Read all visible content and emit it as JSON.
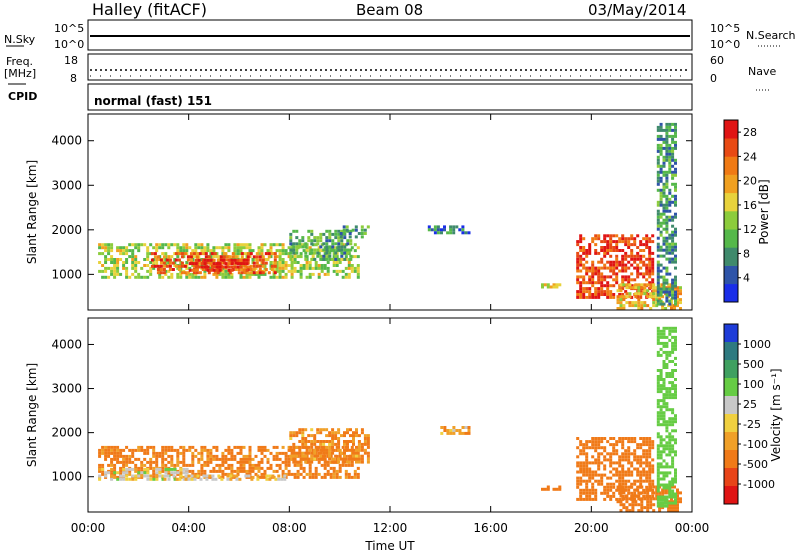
{
  "header": {
    "station": "Halley (fitACF)",
    "beam": "Beam 08",
    "date": "03/May/2014"
  },
  "panels": {
    "nsky": {
      "label": "N.Sky",
      "ticks": [
        "10^5",
        "10^0"
      ]
    },
    "nsearch": {
      "label": "N.Search",
      "ticks": [
        "10^5",
        "10^0"
      ]
    },
    "freq": {
      "label_line1": "Freq.",
      "label_line2": "[MHz]",
      "ticks": [
        "18",
        "8"
      ]
    },
    "nave": {
      "label": "Nave",
      "ticks": [
        "60",
        "0"
      ]
    },
    "cpid": {
      "label": "CPID",
      "value": "normal (fast) 151"
    }
  },
  "colors": {
    "power_scale": [
      "#1a2ee8",
      "#2e54a8",
      "#3f8a6c",
      "#55b84a",
      "#8ccc3c",
      "#e8d23c",
      "#f0a020",
      "#f07a14",
      "#e84a14",
      "#e01414"
    ],
    "velocity_scale": [
      "#1e3cd8",
      "#2e7a80",
      "#3fa060",
      "#66cc44",
      "#c8c8c8",
      "#f0d040",
      "#f0a028",
      "#f07a18",
      "#e84418",
      "#e01414"
    ]
  },
  "chart_data": [
    {
      "type": "heatmap",
      "panel": "power",
      "ylabel": "Slant Range [km]",
      "yticks": [
        "1000",
        "2000",
        "3000",
        "4000"
      ],
      "ylim": [
        200,
        4600
      ],
      "xlim": [
        0,
        24
      ],
      "colorbar": {
        "label": "Power [dB]",
        "ticks": [
          "4",
          "8",
          "12",
          "16",
          "20",
          "24",
          "28"
        ],
        "range": [
          0,
          30
        ]
      },
      "blobs": [
        {
          "t": [
            0.4,
            10.8
          ],
          "r": [
            900,
            1700
          ],
          "v": 14
        },
        {
          "t": [
            2.5,
            7.5
          ],
          "r": [
            1000,
            1500
          ],
          "v": 24
        },
        {
          "t": [
            4.0,
            6.5
          ],
          "r": [
            1050,
            1350
          ],
          "v": 28
        },
        {
          "t": [
            8.0,
            10.5
          ],
          "r": [
            1300,
            2000
          ],
          "v": 10
        },
        {
          "t": [
            10.0,
            11.2
          ],
          "r": [
            1800,
            2100
          ],
          "v": 8
        },
        {
          "t": [
            13.5,
            15.2
          ],
          "r": [
            1900,
            2100
          ],
          "v": 6
        },
        {
          "t": [
            18.0,
            18.8
          ],
          "r": [
            700,
            800
          ],
          "v": 16
        },
        {
          "t": [
            19.4,
            22.5
          ],
          "r": [
            450,
            1900
          ],
          "v": 26
        },
        {
          "t": [
            21.0,
            23.6
          ],
          "r": [
            200,
            800
          ],
          "v": 18
        },
        {
          "t": [
            22.6,
            23.4
          ],
          "r": [
            300,
            4400
          ],
          "v": 8
        }
      ]
    },
    {
      "type": "heatmap",
      "panel": "velocity",
      "xlabel": "Time UT",
      "ylabel": "Slant Range [km]",
      "xticks": [
        "00:00",
        "04:00",
        "08:00",
        "12:00",
        "16:00",
        "20:00",
        "00:00"
      ],
      "yticks": [
        "1000",
        "2000",
        "3000",
        "4000"
      ],
      "ylim": [
        200,
        4600
      ],
      "xlim": [
        0,
        24
      ],
      "colorbar": {
        "label": "Velocity [m s⁻¹]",
        "ticks": [
          "1000",
          "500",
          "100",
          "25",
          "-25",
          "-100",
          "-500",
          "-1000"
        ]
      },
      "blobs": [
        {
          "t": [
            0.4,
            10.8
          ],
          "r": [
            950,
            1700
          ],
          "v": -150
        },
        {
          "t": [
            0.4,
            4.0
          ],
          "r": [
            900,
            1200
          ],
          "v": 50
        },
        {
          "t": [
            3.0,
            8.0
          ],
          "r": [
            900,
            1050
          ],
          "v": 0
        },
        {
          "t": [
            8.0,
            11.2
          ],
          "r": [
            1300,
            2100
          ],
          "v": -120
        },
        {
          "t": [
            14.0,
            15.2
          ],
          "r": [
            1950,
            2150
          ],
          "v": -60
        },
        {
          "t": [
            18.0,
            18.8
          ],
          "r": [
            700,
            800
          ],
          "v": -400
        },
        {
          "t": [
            19.4,
            22.5
          ],
          "r": [
            450,
            1900
          ],
          "v": -300
        },
        {
          "t": [
            21.0,
            23.6
          ],
          "r": [
            200,
            800
          ],
          "v": -200
        },
        {
          "t": [
            22.6,
            23.4
          ],
          "r": [
            300,
            4400
          ],
          "v": 400
        }
      ]
    }
  ]
}
